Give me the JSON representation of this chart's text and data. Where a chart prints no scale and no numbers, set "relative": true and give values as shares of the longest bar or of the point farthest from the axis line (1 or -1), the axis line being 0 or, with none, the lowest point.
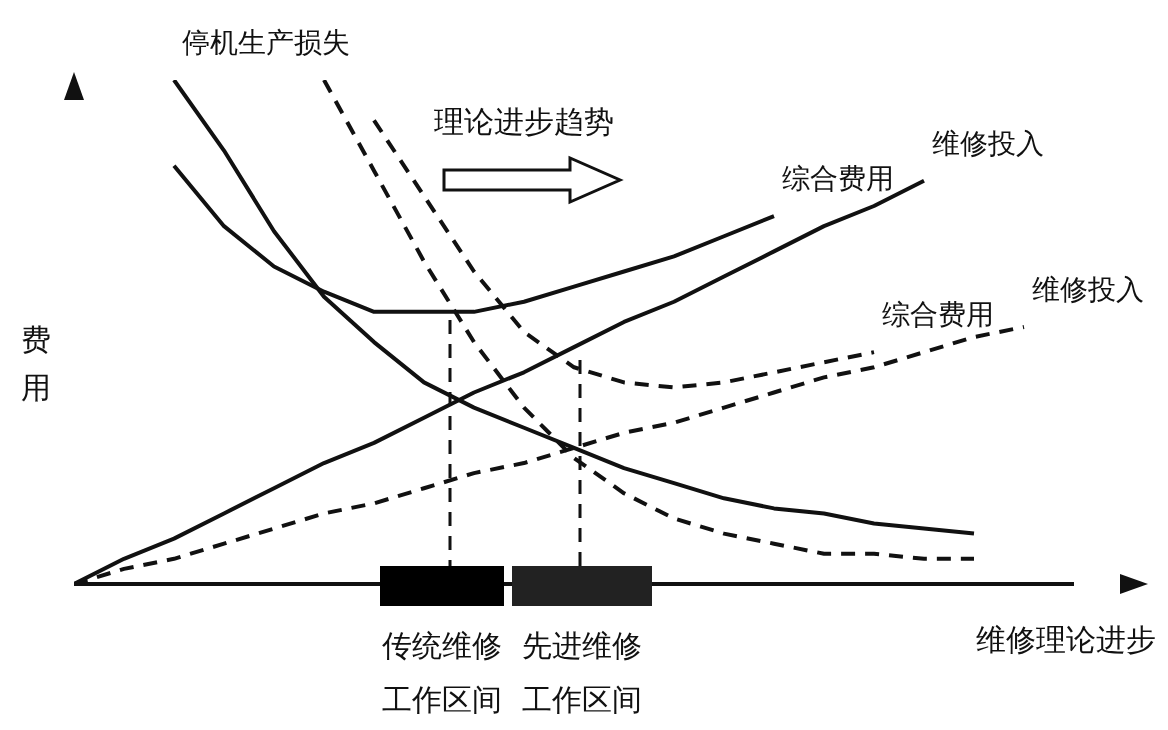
{
  "chart_data": {
    "type": "line",
    "relative": true,
    "xlabel": "维修理论进步",
    "ylabel": "费用",
    "marker": "none",
    "categories": [
      null,
      null,
      null,
      null,
      null,
      null,
      null,
      null,
      null,
      null,
      null,
      null,
      null,
      null,
      null,
      null,
      null,
      null,
      null,
      null,
      null
    ],
    "annotations": [
      "理论进步趋势",
      "传统维修",
      "工作区间",
      "先进维修",
      "工作区间"
    ],
    "series": [
      {
        "name": "停机生产损失",
        "color": "#111111",
        "line_style": "solid",
        "values": [
          null,
          null,
          1.0,
          0.86,
          0.7,
          0.57,
          0.48,
          0.4,
          0.35,
          0.31,
          0.27,
          0.23,
          0.2,
          0.17,
          0.15,
          0.14,
          0.12,
          0.11,
          0.1,
          null,
          null
        ]
      },
      {
        "name": "综合费用",
        "color": "#111111",
        "line_style": "solid",
        "values": [
          null,
          null,
          0.83,
          0.71,
          0.63,
          0.58,
          0.54,
          0.54,
          0.54,
          0.56,
          0.59,
          0.62,
          0.65,
          0.69,
          0.73,
          null,
          null,
          null,
          null,
          null,
          null
        ]
      },
      {
        "name": "维修投入",
        "color": "#111111",
        "line_style": "solid",
        "values": [
          0,
          0.05,
          0.09,
          0.14,
          0.19,
          0.24,
          0.28,
          0.33,
          0.38,
          0.42,
          0.47,
          0.52,
          0.56,
          0.61,
          0.66,
          0.71,
          0.75,
          0.8,
          null,
          null,
          null
        ]
      },
      {
        "color": "#111111",
        "line_style": "dashed",
        "values": [
          null,
          null,
          null,
          null,
          null,
          1.0,
          0.82,
          0.64,
          0.48,
          0.35,
          0.25,
          0.18,
          0.13,
          0.1,
          0.08,
          0.06,
          0.06,
          0.05,
          0.05,
          null,
          null
        ]
      },
      {
        "name": "综合费用",
        "color": "#111111",
        "line_style": "dashed",
        "values": [
          null,
          null,
          null,
          null,
          null,
          null,
          0.92,
          0.77,
          0.62,
          0.5,
          0.43,
          0.4,
          0.39,
          0.4,
          0.42,
          0.44,
          0.46,
          null,
          null,
          null,
          null
        ]
      },
      {
        "name": "维修投入",
        "color": "#111111",
        "line_style": "dashed",
        "values": [
          0,
          0.03,
          0.05,
          0.08,
          0.11,
          0.14,
          0.16,
          0.19,
          0.22,
          0.24,
          0.27,
          0.3,
          0.32,
          0.35,
          0.38,
          0.41,
          0.43,
          0.46,
          0.49,
          0.51,
          null
        ]
      }
    ]
  }
}
